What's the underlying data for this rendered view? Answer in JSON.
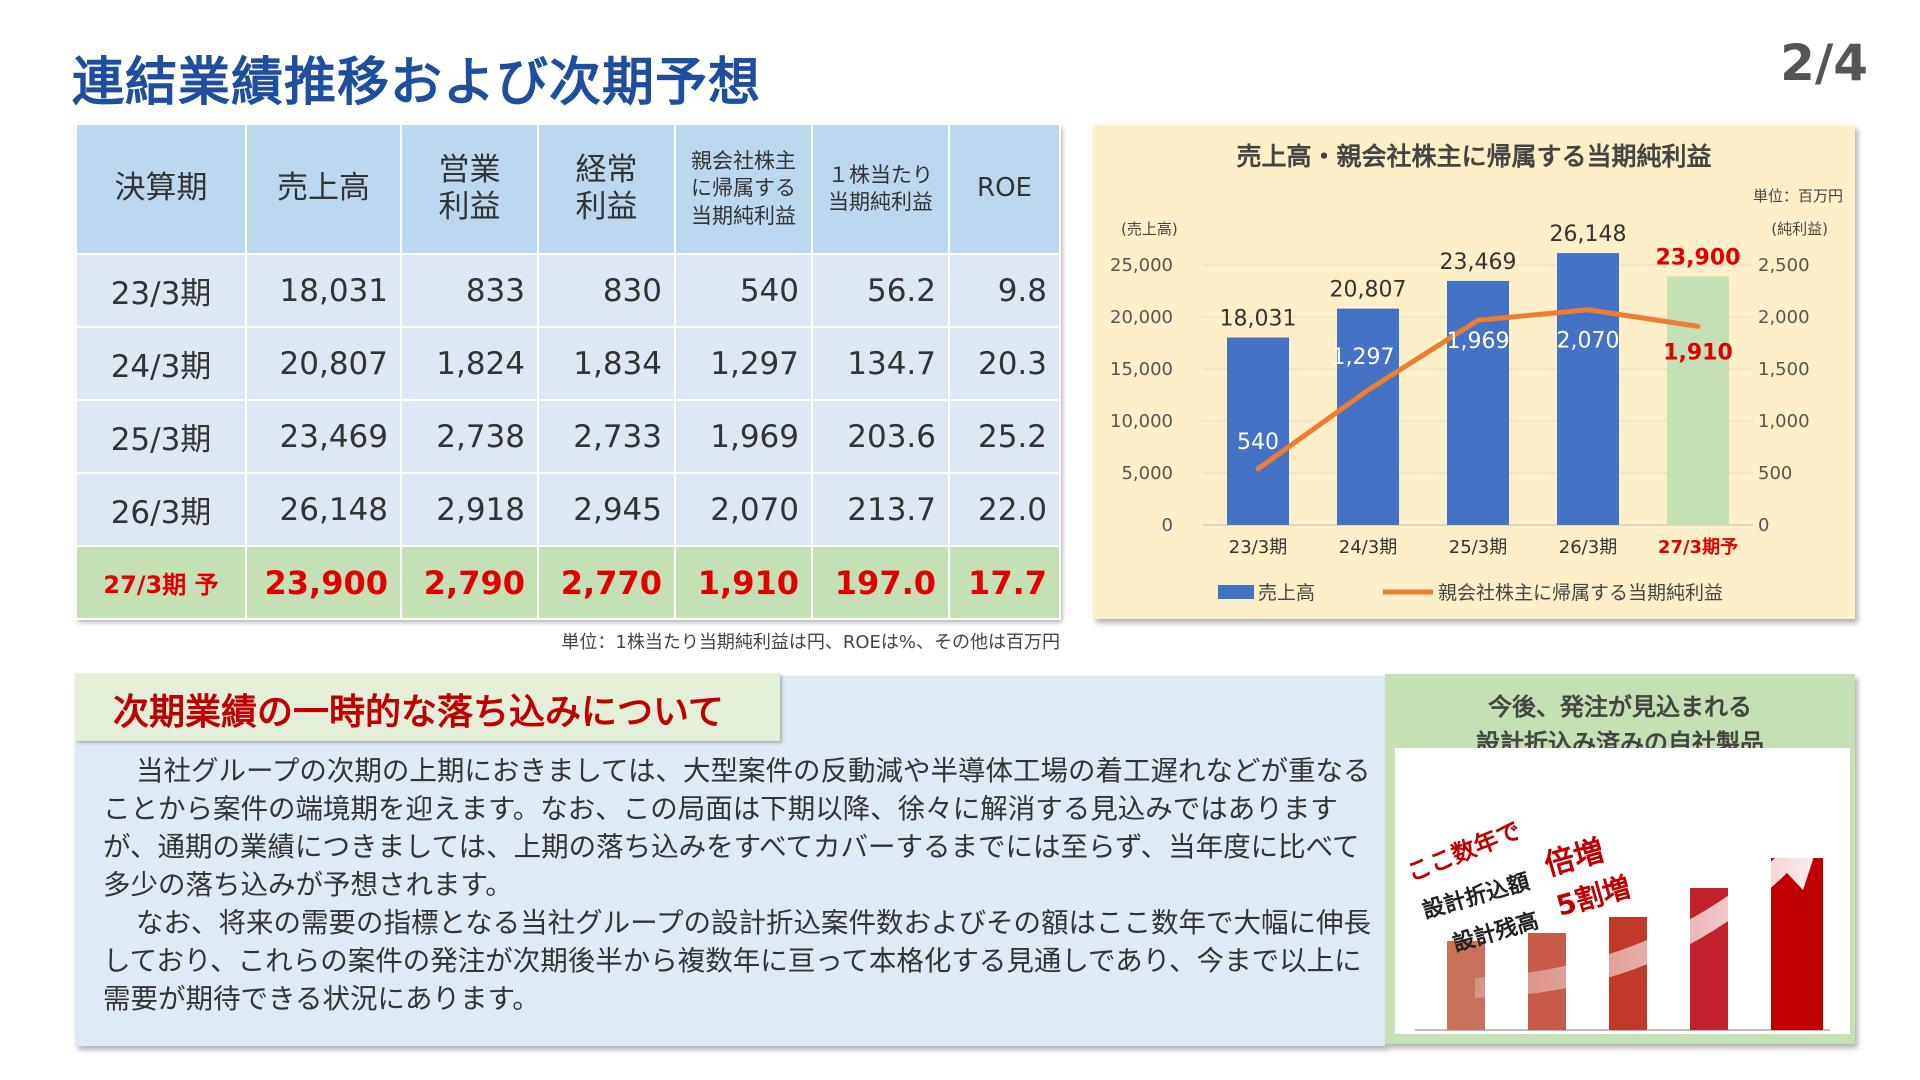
{
  "page": {
    "title": "連結業績推移および次期予想",
    "page_number": "2/4"
  },
  "table": {
    "headers": [
      [
        "決算期"
      ],
      [
        "売上高"
      ],
      [
        "営業",
        "利益"
      ],
      [
        "経常",
        "利益"
      ],
      [
        "親会社株主",
        "に帰属する",
        "当期純利益"
      ],
      [
        "１株当たり",
        "当期純利益"
      ],
      [
        "ROE"
      ]
    ],
    "rows": [
      [
        "23/3期",
        "18,031",
        "833",
        "830",
        "540",
        "56.2",
        "9.8"
      ],
      [
        "24/3期",
        "20,807",
        "1,824",
        "1,834",
        "1,297",
        "134.7",
        "20.3"
      ],
      [
        "25/3期",
        "23,469",
        "2,738",
        "2,733",
        "1,969",
        "203.6",
        "25.2"
      ],
      [
        "26/3期",
        "26,148",
        "2,918",
        "2,945",
        "2,070",
        "213.7",
        "22.0"
      ]
    ],
    "forecast_row": [
      "27/3期 予",
      "23,900",
      "2,790",
      "2,770",
      "1,910",
      "197.0",
      "17.7"
    ],
    "unit_note": "単位：1株当たり当期純利益は円、ROEは%、その他は百万円"
  },
  "chart_data": {
    "type": "bar",
    "title": "売上高・親会社株主に帰属する当期純利益",
    "unit": "単位：百万円",
    "left_axis_label": "(売上高)",
    "right_axis_label": "(純利益)",
    "categories": [
      "23/3期",
      "24/3期",
      "25/3期",
      "26/3期",
      "27/3期予"
    ],
    "ylim": [
      0,
      25000
    ],
    "y2lim": [
      0,
      2500
    ],
    "yticks": [
      "0",
      "5,000",
      "10,000",
      "15,000",
      "20,000",
      "25,000"
    ],
    "y2ticks": [
      "0",
      "500",
      "1,000",
      "1,500",
      "2,000",
      "2,500"
    ],
    "series": [
      {
        "name": "売上高",
        "type": "bar",
        "axis": "left",
        "values": [
          18031,
          20807,
          23469,
          26148,
          23900
        ],
        "labels": [
          "18,031",
          "20,807",
          "23,469",
          "26,148",
          "23,900"
        ]
      },
      {
        "name": "親会社株主に帰属する当期純利益",
        "type": "line",
        "axis": "right",
        "values": [
          540,
          1297,
          1969,
          2070,
          1910
        ],
        "labels": [
          "540",
          "1,297",
          "1,969",
          "2,070",
          "1,910"
        ]
      }
    ],
    "colors": {
      "bar": "#4472c4",
      "forecast_bar": "#c5e0b4",
      "line": "#ed7d31",
      "forecast_text": "#e00000"
    },
    "legend_position": "bottom"
  },
  "explanation": {
    "heading": "次期業績の一時的な落ち込みについて",
    "paragraphs": [
      "当社グループの次期の上期におきましては、大型案件の反動減や半導体工場の着工遅れなどが重なることから案件の端境期を迎えます。なお、この局面は下期以降、徐々に解消する見込みではありますが、通期の業績につきましては、上期の落ち込みをすべてカバーするまでには至らず、当年度に比べて多少の落ち込みが予想されます。",
      "なお、将来の需要の指標となる当社グループの設計折込案件数およびその額はここ数年で大幅に伸長しており、これらの案件の発注が次期後半から複数年に亘って本格化する見通しであり、今まで以上に需要が期待できる状況にあります。"
    ]
  },
  "side_panel": {
    "title_lines": [
      "今後、発注が見込まれる",
      "設計折込み済みの自社製品"
    ],
    "caption": "ここ数年で",
    "item1": "設計折込額",
    "value1": "倍増",
    "item2": "設計残高",
    "value2": "5割増"
  }
}
